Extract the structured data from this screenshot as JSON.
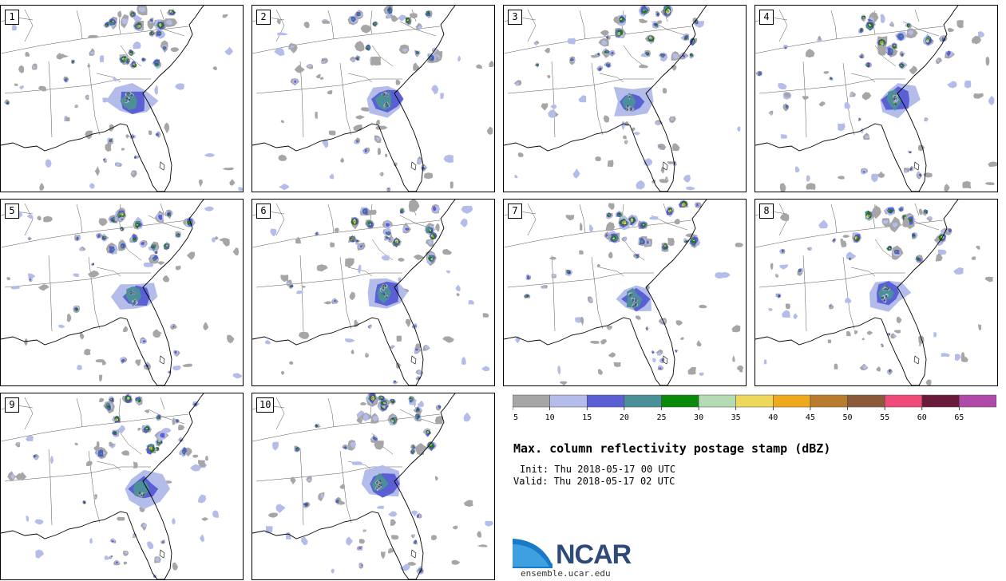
{
  "panels": [
    {
      "label": "1"
    },
    {
      "label": "2"
    },
    {
      "label": "3"
    },
    {
      "label": "4"
    },
    {
      "label": "5"
    },
    {
      "label": "6"
    },
    {
      "label": "7"
    },
    {
      "label": "8"
    },
    {
      "label": "9"
    },
    {
      "label": "10"
    }
  ],
  "colorbar": {
    "bins": [
      {
        "min": 5,
        "max": 10,
        "color": "#a6a6a6"
      },
      {
        "min": 10,
        "max": 15,
        "color": "#b4bde9"
      },
      {
        "min": 15,
        "max": 20,
        "color": "#5a60d4"
      },
      {
        "min": 20,
        "max": 25,
        "color": "#4b9099"
      },
      {
        "min": 25,
        "max": 30,
        "color": "#0a8a0a"
      },
      {
        "min": 30,
        "max": 35,
        "color": "#b5dbb5"
      },
      {
        "min": 35,
        "max": 40,
        "color": "#eed85a"
      },
      {
        "min": 40,
        "max": 45,
        "color": "#eeaa1c"
      },
      {
        "min": 45,
        "max": 50,
        "color": "#b87c2c"
      },
      {
        "min": 50,
        "max": 55,
        "color": "#8b5a3a"
      },
      {
        "min": 55,
        "max": 60,
        "color": "#ee4a7a"
      },
      {
        "min": 60,
        "max": 65,
        "color": "#6a1a3a"
      },
      {
        "min": 65,
        "max": 70,
        "color": "#b04aaa"
      }
    ],
    "tick_labels": [
      "5",
      "10",
      "15",
      "20",
      "25",
      "30",
      "35",
      "40",
      "45",
      "50",
      "55",
      "60",
      "65"
    ]
  },
  "title": "Max. column reflectivity postage stamp (dBZ)",
  "init": "Init: Thu 2018-05-17 00 UTC",
  "valid": "Valid: Thu 2018-05-17 02 UTC",
  "logo": {
    "text": "NCAR",
    "url": "ensemble.ucar.edu"
  }
}
